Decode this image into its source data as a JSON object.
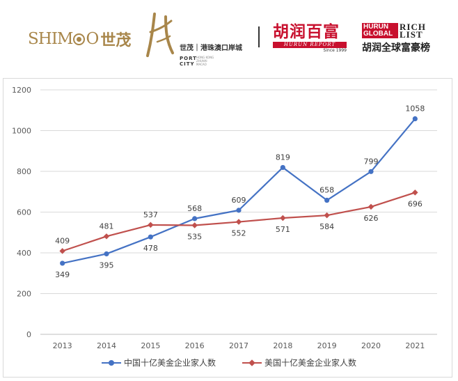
{
  "banner": {
    "shimao_word": "SHIM",
    "shimao_word_end": "O",
    "shimao_cn": "世茂",
    "port_cn": "世茂｜港珠澳口岸城",
    "port_en": "PORT\nCITY",
    "port_sub": "HONG KONG\nZHUHAI\nMACAO",
    "hurun_cn": "胡润百富",
    "hurun_report": "HURUN REPORT",
    "hurun_since": "Since 1999",
    "hurun_global_box": "HURUN\nGLOBAL",
    "hurun_rich": "RICH\nLIST",
    "hurun_global_cn": "胡润全球富豪榜"
  },
  "colors": {
    "china_series": "#4472c4",
    "us_series": "#c0504d",
    "hurun_red": "#c8102e",
    "shimao_gold": "#a8864a"
  },
  "chart_data": {
    "type": "line",
    "x": [
      "2013",
      "2014",
      "2015",
      "2016",
      "2017",
      "2018",
      "2019",
      "2020",
      "2021"
    ],
    "ylim": [
      0,
      1200
    ],
    "yticks": [
      "0",
      "200",
      "400",
      "600",
      "800",
      "1000",
      "1200"
    ],
    "grid": true,
    "legend_position": "bottom",
    "series": [
      {
        "name": "中国十亿美金企业家人数",
        "marker": "circle",
        "values": [
          349,
          395,
          478,
          568,
          609,
          819,
          658,
          799,
          1058
        ],
        "labels": [
          "349",
          "395",
          "478",
          "568",
          "609",
          "819",
          "658",
          "799",
          "1058"
        ],
        "label_side": [
          "below",
          "below",
          "below",
          "above",
          "above",
          "above",
          "above",
          "above",
          "above"
        ]
      },
      {
        "name": "美国十亿美金企业家人数",
        "marker": "diamond",
        "values": [
          409,
          481,
          537,
          535,
          552,
          571,
          584,
          626,
          696
        ],
        "labels": [
          "409",
          "481",
          "537",
          "535",
          "552",
          "571",
          "584",
          "626",
          "696"
        ],
        "label_side": [
          "above",
          "above",
          "above",
          "below",
          "below",
          "below",
          "below",
          "below",
          "below"
        ]
      }
    ]
  }
}
